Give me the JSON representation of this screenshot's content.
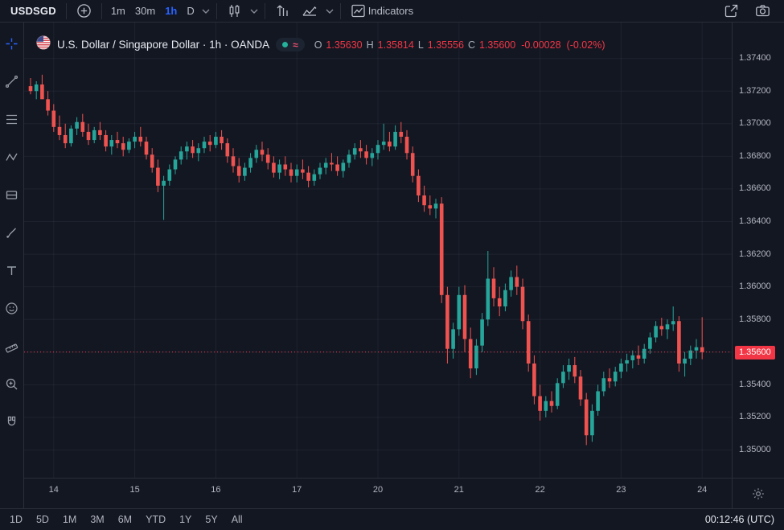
{
  "colors": {
    "bg": "#131722",
    "border": "#2a2e39",
    "text": "#d1d4dc",
    "muted": "#868b98",
    "accent": "#2962ff",
    "up": "#26a69a",
    "down": "#ef5350",
    "sell": "#f23645"
  },
  "top_toolbar": {
    "symbol": "USDSGD",
    "intervals": [
      {
        "label": "1m"
      },
      {
        "label": "30m"
      },
      {
        "label": "1h"
      },
      {
        "label": "D"
      }
    ],
    "indicators_label": "Indicators",
    "icons": [
      "add-symbol",
      "interval-chevron",
      "chart-style-candles",
      "chart-style-chevron",
      "bar-replay",
      "compare-chart",
      "compare-chevron",
      "indicators",
      "share",
      "screenshot-camera"
    ]
  },
  "legend": {
    "title": "U.S. Dollar / Singapore Dollar · 1h · OANDA",
    "market_status_icons": [
      "realtime-dot",
      "delayed-wave"
    ],
    "ohlc": {
      "o_label": "O",
      "o_value": "1.35630",
      "h_label": "H",
      "h_value": "1.35814",
      "l_label": "L",
      "l_value": "1.35556",
      "c_label": "C",
      "c_value": "1.35600",
      "change": "-0.00028",
      "change_pct": "(-0.02%)"
    }
  },
  "price_axis": {
    "last_price_label": "1.35600"
  },
  "bottom_toolbar": {
    "ranges": [
      "1D",
      "5D",
      "1M",
      "3M",
      "6M",
      "YTD",
      "1Y",
      "5Y",
      "All"
    ],
    "clock": "00:12:46 (UTC)"
  },
  "sidebar_tools": [
    "crosshair",
    "trend-line",
    "fib-retracement",
    "pattern",
    "forecast",
    "brush",
    "text",
    "emoji",
    "measure",
    "zoom",
    "magnet"
  ],
  "chart_data": {
    "type": "candlestick",
    "title": "U.S. Dollar / Singapore Dollar",
    "interval": "1h",
    "exchange": "OANDA",
    "ohlc_last": {
      "open": 1.3563,
      "high": 1.35814,
      "low": 1.35556,
      "close": 1.356,
      "change": -0.00028,
      "change_pct": -0.02
    },
    "ylim": [
      1.3483,
      1.3762
    ],
    "y_ticks": [
      1.374,
      1.372,
      1.37,
      1.368,
      1.366,
      1.364,
      1.362,
      1.36,
      1.358,
      1.356,
      1.354,
      1.352,
      1.35
    ],
    "last_price": 1.356,
    "x_labels": [
      {
        "index": 4,
        "label": "14"
      },
      {
        "index": 18,
        "label": "15"
      },
      {
        "index": 32,
        "label": "16"
      },
      {
        "index": 46,
        "label": "17"
      },
      {
        "index": 60,
        "label": "20"
      },
      {
        "index": 74,
        "label": "21"
      },
      {
        "index": 88,
        "label": "22"
      },
      {
        "index": 102,
        "label": "23"
      },
      {
        "index": 116,
        "label": "24"
      }
    ],
    "candles": [
      [
        1.3723,
        1.3728,
        1.3718,
        1.372
      ],
      [
        1.372,
        1.3726,
        1.3715,
        1.3724
      ],
      [
        1.3724,
        1.373,
        1.372,
        1.3715
      ],
      [
        1.3715,
        1.372,
        1.3705,
        1.3708
      ],
      [
        1.3708,
        1.3712,
        1.3695,
        1.3698
      ],
      [
        1.3698,
        1.3705,
        1.369,
        1.3693
      ],
      [
        1.3693,
        1.37,
        1.3685,
        1.3688
      ],
      [
        1.3688,
        1.3699,
        1.3686,
        1.3697
      ],
      [
        1.3697,
        1.3704,
        1.3693,
        1.3701
      ],
      [
        1.3701,
        1.3706,
        1.3692,
        1.3695
      ],
      [
        1.3695,
        1.37,
        1.3687,
        1.369
      ],
      [
        1.369,
        1.3698,
        1.3688,
        1.3696
      ],
      [
        1.3696,
        1.3701,
        1.369,
        1.3693
      ],
      [
        1.3693,
        1.3696,
        1.3683,
        1.3686
      ],
      [
        1.3686,
        1.3693,
        1.3681,
        1.369
      ],
      [
        1.369,
        1.3695,
        1.3685,
        1.3688
      ],
      [
        1.3688,
        1.3692,
        1.368,
        1.3684
      ],
      [
        1.3684,
        1.3691,
        1.3682,
        1.3689
      ],
      [
        1.3689,
        1.3695,
        1.3685,
        1.3692
      ],
      [
        1.3692,
        1.3698,
        1.3686,
        1.3689
      ],
      [
        1.3689,
        1.3692,
        1.3678,
        1.3681
      ],
      [
        1.3681,
        1.3685,
        1.367,
        1.3673
      ],
      [
        1.3673,
        1.3678,
        1.3658,
        1.3662
      ],
      [
        1.3662,
        1.3668,
        1.3641,
        1.3665
      ],
      [
        1.3665,
        1.3675,
        1.3662,
        1.3672
      ],
      [
        1.3672,
        1.368,
        1.3669,
        1.3678
      ],
      [
        1.3678,
        1.3686,
        1.3675,
        1.3683
      ],
      [
        1.3683,
        1.3689,
        1.3678,
        1.3686
      ],
      [
        1.3686,
        1.369,
        1.3679,
        1.3682
      ],
      [
        1.3682,
        1.3688,
        1.3677,
        1.3685
      ],
      [
        1.3685,
        1.3692,
        1.3682,
        1.3689
      ],
      [
        1.3689,
        1.3693,
        1.3683,
        1.3687
      ],
      [
        1.3687,
        1.3695,
        1.3685,
        1.3692
      ],
      [
        1.3692,
        1.3696,
        1.3684,
        1.3688
      ],
      [
        1.3688,
        1.3691,
        1.3676,
        1.368
      ],
      [
        1.368,
        1.3685,
        1.367,
        1.3674
      ],
      [
        1.3674,
        1.3679,
        1.3664,
        1.3668
      ],
      [
        1.3668,
        1.3676,
        1.3665,
        1.3673
      ],
      [
        1.3673,
        1.3682,
        1.367,
        1.3679
      ],
      [
        1.3679,
        1.3687,
        1.3676,
        1.3684
      ],
      [
        1.3684,
        1.3689,
        1.3677,
        1.3681
      ],
      [
        1.3681,
        1.3685,
        1.3672,
        1.3676
      ],
      [
        1.3676,
        1.368,
        1.3667,
        1.367
      ],
      [
        1.367,
        1.3678,
        1.3666,
        1.3675
      ],
      [
        1.3675,
        1.368,
        1.3668,
        1.3672
      ],
      [
        1.3672,
        1.3676,
        1.3664,
        1.3668
      ],
      [
        1.3668,
        1.3675,
        1.3664,
        1.3672
      ],
      [
        1.3672,
        1.3678,
        1.3666,
        1.367
      ],
      [
        1.367,
        1.3674,
        1.3661,
        1.3665
      ],
      [
        1.3665,
        1.3672,
        1.3662,
        1.3669
      ],
      [
        1.3669,
        1.3676,
        1.3666,
        1.3673
      ],
      [
        1.3673,
        1.3679,
        1.3669,
        1.3676
      ],
      [
        1.3676,
        1.3682,
        1.3671,
        1.3675
      ],
      [
        1.3675,
        1.368,
        1.3668,
        1.3671
      ],
      [
        1.3671,
        1.3678,
        1.3667,
        1.3676
      ],
      [
        1.3676,
        1.3684,
        1.3673,
        1.3681
      ],
      [
        1.3681,
        1.3688,
        1.3678,
        1.3685
      ],
      [
        1.3685,
        1.369,
        1.3679,
        1.3683
      ],
      [
        1.3683,
        1.3687,
        1.3675,
        1.3679
      ],
      [
        1.3679,
        1.3685,
        1.3674,
        1.3682
      ],
      [
        1.3682,
        1.369,
        1.3678,
        1.3687
      ],
      [
        1.3687,
        1.37,
        1.3684,
        1.3689
      ],
      [
        1.3689,
        1.3695,
        1.3683,
        1.3686
      ],
      [
        1.3686,
        1.3699,
        1.3684,
        1.3695
      ],
      [
        1.3695,
        1.3701,
        1.3688,
        1.3692
      ],
      [
        1.3692,
        1.3696,
        1.3678,
        1.3682
      ],
      [
        1.3682,
        1.3686,
        1.3664,
        1.3668
      ],
      [
        1.3668,
        1.3672,
        1.3652,
        1.3656
      ],
      [
        1.3656,
        1.3662,
        1.3646,
        1.365
      ],
      [
        1.365,
        1.3656,
        1.3644,
        1.3648
      ],
      [
        1.3648,
        1.3654,
        1.3642,
        1.3651
      ],
      [
        1.3651,
        1.3655,
        1.359,
        1.3595
      ],
      [
        1.3595,
        1.36,
        1.3553,
        1.3562
      ],
      [
        1.3562,
        1.3578,
        1.3556,
        1.3574
      ],
      [
        1.3574,
        1.36,
        1.357,
        1.3595
      ],
      [
        1.3595,
        1.3601,
        1.356,
        1.3568
      ],
      [
        1.3568,
        1.3575,
        1.3544,
        1.355
      ],
      [
        1.355,
        1.3568,
        1.3546,
        1.3564
      ],
      [
        1.3564,
        1.3584,
        1.356,
        1.358
      ],
      [
        1.358,
        1.3622,
        1.3576,
        1.3605
      ],
      [
        1.3605,
        1.3612,
        1.3588,
        1.3593
      ],
      [
        1.3593,
        1.36,
        1.3582,
        1.3588
      ],
      [
        1.3588,
        1.3602,
        1.3585,
        1.3598
      ],
      [
        1.3598,
        1.361,
        1.3594,
        1.3606
      ],
      [
        1.3606,
        1.3613,
        1.3595,
        1.36
      ],
      [
        1.36,
        1.3605,
        1.3574,
        1.3579
      ],
      [
        1.3579,
        1.3583,
        1.3548,
        1.3553
      ],
      [
        1.3553,
        1.3558,
        1.3528,
        1.3533
      ],
      [
        1.3533,
        1.354,
        1.3518,
        1.3524
      ],
      [
        1.3524,
        1.3533,
        1.352,
        1.353
      ],
      [
        1.353,
        1.3536,
        1.3523,
        1.3527
      ],
      [
        1.3527,
        1.3544,
        1.3525,
        1.3541
      ],
      [
        1.3541,
        1.3552,
        1.3538,
        1.3548
      ],
      [
        1.3548,
        1.3556,
        1.3543,
        1.3552
      ],
      [
        1.3552,
        1.3557,
        1.3541,
        1.3545
      ],
      [
        1.3545,
        1.3549,
        1.3527,
        1.3531
      ],
      [
        1.3531,
        1.3535,
        1.3503,
        1.3509
      ],
      [
        1.3509,
        1.3528,
        1.3505,
        1.3524
      ],
      [
        1.3524,
        1.354,
        1.3521,
        1.3536
      ],
      [
        1.3536,
        1.3548,
        1.3533,
        1.3544
      ],
      [
        1.3544,
        1.355,
        1.3538,
        1.3542
      ],
      [
        1.3542,
        1.3551,
        1.3539,
        1.3548
      ],
      [
        1.3548,
        1.3556,
        1.3544,
        1.3553
      ],
      [
        1.3553,
        1.3559,
        1.3548,
        1.3555
      ],
      [
        1.3555,
        1.3561,
        1.355,
        1.3558
      ],
      [
        1.3558,
        1.3564,
        1.3552,
        1.3556
      ],
      [
        1.3556,
        1.3565,
        1.3553,
        1.3562
      ],
      [
        1.3562,
        1.3572,
        1.3559,
        1.3569
      ],
      [
        1.3569,
        1.3579,
        1.3566,
        1.3576
      ],
      [
        1.3576,
        1.3581,
        1.357,
        1.3574
      ],
      [
        1.3574,
        1.358,
        1.3568,
        1.3577
      ],
      [
        1.3577,
        1.3588,
        1.3573,
        1.3579
      ],
      [
        1.3579,
        1.3582,
        1.3548,
        1.3553
      ],
      [
        1.3553,
        1.356,
        1.3545,
        1.3556
      ],
      [
        1.3556,
        1.3564,
        1.3552,
        1.3561
      ],
      [
        1.3561,
        1.3568,
        1.3556,
        1.3563
      ],
      [
        1.3563,
        1.35814,
        1.35556,
        1.356
      ]
    ]
  }
}
